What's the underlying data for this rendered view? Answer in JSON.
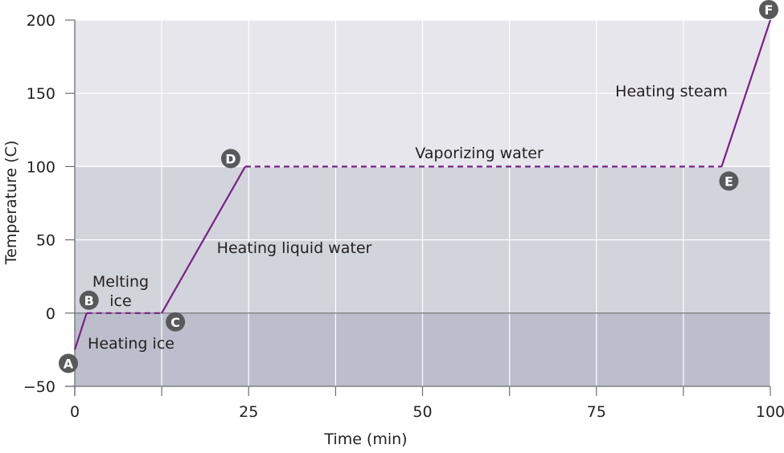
{
  "chart_data": {
    "type": "line",
    "xlabel": "Time (min)",
    "ylabel": "Temperature (C)",
    "xlim": [
      0,
      100
    ],
    "ylim": [
      -50,
      200
    ],
    "xticks": [
      0,
      25,
      50,
      75,
      100
    ],
    "xtick_labels": [
      "0",
      "25",
      "50",
      "75",
      "100"
    ],
    "x_gridlines": [
      0,
      12.5,
      25,
      37.5,
      50,
      62.5,
      75,
      87.5,
      100
    ],
    "yticks": [
      -50,
      0,
      50,
      100,
      150,
      200
    ],
    "ytick_labels": [
      "−50",
      "0",
      "50",
      "100",
      "150",
      "200"
    ],
    "grid": true,
    "background_bands": [
      {
        "from": 100,
        "to": 200,
        "color": "#e6e6ec"
      },
      {
        "from": 0,
        "to": 100,
        "color": "#d2d4dc"
      },
      {
        "from": -50,
        "to": 0,
        "color": "#bcbfcb"
      }
    ],
    "line_color": "#7b1f8a",
    "points": [
      {
        "label": "A",
        "x": 0,
        "y": -25
      },
      {
        "label": "B",
        "x": 1.7,
        "y": 0
      },
      {
        "label": "C",
        "x": 12.5,
        "y": 0
      },
      {
        "label": "D",
        "x": 24.5,
        "y": 100
      },
      {
        "label": "E",
        "x": 93,
        "y": 100
      },
      {
        "label": "F",
        "x": 100,
        "y": 200
      }
    ],
    "segments": [
      {
        "from": "A",
        "to": "B",
        "style": "solid",
        "annotation": "Heating ice"
      },
      {
        "from": "B",
        "to": "C",
        "style": "dashed",
        "annotation": "Melting ice"
      },
      {
        "from": "C",
        "to": "D",
        "style": "solid",
        "annotation": "Heating liquid water"
      },
      {
        "from": "D",
        "to": "E",
        "style": "dashed",
        "annotation": "Vaporizing water"
      },
      {
        "from": "E",
        "to": "F",
        "style": "solid",
        "annotation": "Heating steam"
      }
    ],
    "annotations": {
      "heating_ice": "Heating ice",
      "melting_line1": "Melting",
      "melting_line2": "ice",
      "heating_liquid": "Heating liquid water",
      "vaporizing": "Vaporizing water",
      "heating_steam": "Heating steam"
    }
  }
}
